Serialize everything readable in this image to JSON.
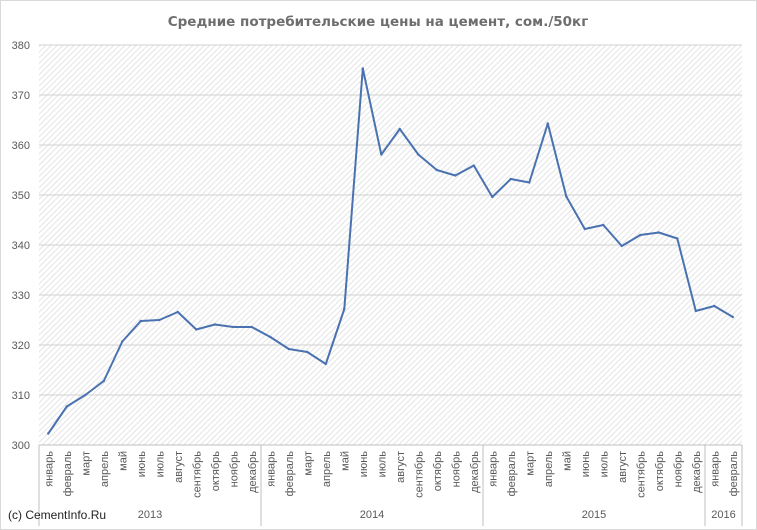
{
  "chart_data": {
    "type": "line",
    "title": "Средние потребительские цены на цемент, сом./50кг",
    "ylim": [
      300,
      380
    ],
    "yticks": [
      300,
      310,
      320,
      330,
      340,
      350,
      360,
      370,
      380
    ],
    "grid": true,
    "legend": "none",
    "line_color": "#4a72b0",
    "categories": [
      "январь",
      "февраль",
      "март",
      "апрель",
      "май",
      "июнь",
      "июль",
      "август",
      "сентябрь",
      "октябрь",
      "ноябрь",
      "декабрь",
      "январь",
      "февраль",
      "март",
      "апрель",
      "май",
      "июнь",
      "июль",
      "август",
      "сентябрь",
      "октябрь",
      "ноябрь",
      "декабрь",
      "январь",
      "февраль",
      "март",
      "апрель",
      "май",
      "июнь",
      "июль",
      "август",
      "сентябрь",
      "октябрь",
      "ноябрь",
      "декабрь",
      "январь",
      "февраль"
    ],
    "years": [
      {
        "label": "2013",
        "count": 12
      },
      {
        "label": "2014",
        "count": 12
      },
      {
        "label": "2015",
        "count": 12
      },
      {
        "label": "2016",
        "count": 2
      }
    ],
    "series": [
      {
        "values": [
          302.3,
          307.7,
          310.0,
          312.8,
          320.7,
          324.8,
          325.0,
          326.6,
          323.1,
          324.1,
          323.6,
          323.6,
          321.6,
          319.2,
          318.6,
          316.2,
          327.2,
          375.3,
          358.1,
          363.2,
          358.1,
          355.0,
          353.9,
          355.9,
          349.6,
          353.2,
          352.5,
          364.3,
          349.7,
          343.2,
          344.0,
          339.8,
          342.0,
          342.5,
          341.3,
          326.8,
          327.8,
          325.6
        ]
      }
    ]
  },
  "footer": {
    "copyright": "(c) CementInfo.Ru"
  }
}
